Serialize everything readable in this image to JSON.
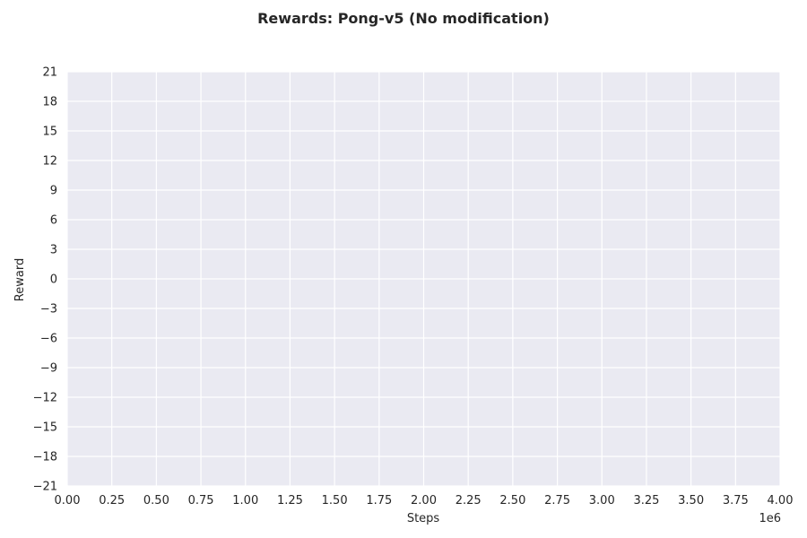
{
  "chart_data": {
    "type": "line",
    "title": "Rewards: Pong-v5 (No modification)",
    "xlabel": "Steps",
    "ylabel": "Reward",
    "x_offset_label": "1e6",
    "xlim": [
      0,
      4000000
    ],
    "ylim": [
      -21,
      21
    ],
    "x_ticks": [
      0,
      250000,
      500000,
      750000,
      1000000,
      1250000,
      1500000,
      1750000,
      2000000,
      2250000,
      2500000,
      2750000,
      3000000,
      3250000,
      3500000,
      3750000,
      4000000
    ],
    "x_tick_labels": [
      "0.00",
      "0.25",
      "0.50",
      "0.75",
      "1.00",
      "1.25",
      "1.50",
      "1.75",
      "2.00",
      "2.25",
      "2.50",
      "2.75",
      "3.00",
      "3.25",
      "3.50",
      "3.75",
      "4.00"
    ],
    "y_ticks": [
      21,
      18,
      15,
      12,
      9,
      6,
      3,
      0,
      -3,
      -6,
      -9,
      -12,
      -15,
      -18,
      -21
    ],
    "y_tick_labels": [
      "21",
      "18",
      "15",
      "12",
      "9",
      "6",
      "3",
      "0",
      "−3",
      "−6",
      "−9",
      "−12",
      "−15",
      "−18",
      "−21"
    ],
    "grid": true,
    "series": [],
    "colors": {
      "plot_background": "#eaeaf2",
      "grid": "#ffffff",
      "text": "#262626"
    }
  }
}
